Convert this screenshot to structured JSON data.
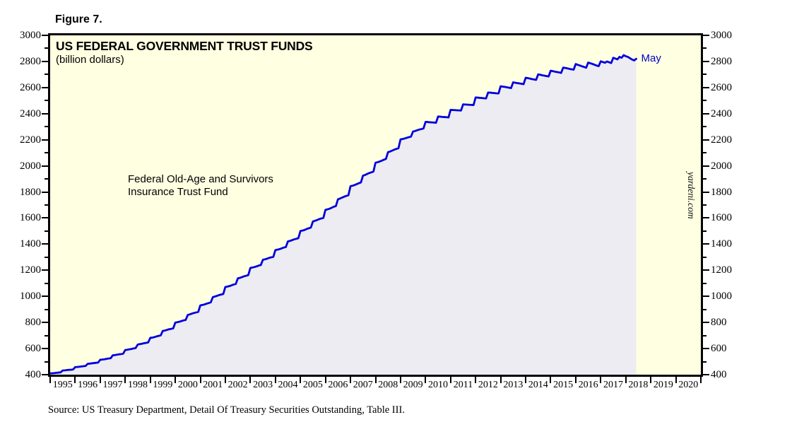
{
  "figure_label": "Figure 7.",
  "chart": {
    "title": "US FEDERAL GOVERNMENT TRUST FUNDS",
    "subtitle": "(billion dollars)",
    "annotation": "Federal Old-Age and Survivors\nInsurance Trust Fund",
    "end_label": "May",
    "watermark": "yardeni.com",
    "colors": {
      "plot_bg": "#FFFFE1",
      "area_fill": "#ECECF2",
      "line": "#0000DD",
      "frame": "#000000",
      "end_label_color": "#0000CC"
    }
  },
  "source_note": "Source: US Treasury Department, Detail Of Treasury Securities Outstanding, Table III.",
  "chart_data": {
    "type": "area",
    "series_name": "Federal Old-Age and Survivors Insurance Trust Fund",
    "unit": "billion dollars",
    "title": "US FEDERAL GOVERNMENT TRUST FUNDS",
    "x_axis_range": [
      1995,
      2021
    ],
    "x_tick_years": [
      1995,
      1996,
      1997,
      1998,
      1999,
      2000,
      2001,
      2002,
      2003,
      2004,
      2005,
      2006,
      2007,
      2008,
      2009,
      2010,
      2011,
      2012,
      2013,
      2014,
      2015,
      2016,
      2017,
      2018,
      2019,
      2020
    ],
    "y_axis_range": [
      400,
      3000
    ],
    "y_tick_step": 200,
    "y_minor_tick_step": 100,
    "x_start_year": 1995,
    "x_interval": "monthly",
    "last_point_label": "May 2018",
    "grid": false,
    "values": [
      410,
      411,
      412,
      414,
      416,
      418,
      432,
      433,
      435,
      437,
      438,
      440,
      458,
      459,
      461,
      463,
      465,
      467,
      483,
      485,
      487,
      489,
      491,
      493,
      514,
      516,
      518,
      521,
      524,
      526,
      548,
      550,
      553,
      556,
      558,
      561,
      589,
      591,
      594,
      597,
      601,
      604,
      631,
      634,
      637,
      641,
      644,
      647,
      682,
      684,
      688,
      693,
      697,
      701,
      735,
      738,
      743,
      748,
      751,
      755,
      799,
      802,
      806,
      811,
      816,
      820,
      858,
      862,
      868,
      873,
      877,
      881,
      931,
      934,
      938,
      944,
      949,
      954,
      994,
      999,
      1004,
      1010,
      1014,
      1018,
      1072,
      1075,
      1079,
      1085,
      1091,
      1095,
      1138,
      1142,
      1148,
      1154,
      1158,
      1163,
      1218,
      1221,
      1225,
      1230,
      1236,
      1240,
      1280,
      1284,
      1289,
      1295,
      1299,
      1303,
      1355,
      1358,
      1362,
      1368,
      1374,
      1378,
      1421,
      1425,
      1431,
      1437,
      1441,
      1446,
      1501,
      1504,
      1509,
      1516,
      1522,
      1527,
      1574,
      1579,
      1585,
      1592,
      1597,
      1601,
      1663,
      1667,
      1672,
      1679,
      1687,
      1692,
      1744,
      1750,
      1757,
      1764,
      1770,
      1775,
      1844,
      1848,
      1853,
      1860,
      1867,
      1873,
      1925,
      1930,
      1938,
      1945,
      1950,
      1956,
      2024,
      2028,
      2033,
      2040,
      2047,
      2053,
      2105,
      2110,
      2117,
      2124,
      2130,
      2135,
      2203,
      2206,
      2210,
      2215,
      2220,
      2224,
      2263,
      2267,
      2273,
      2278,
      2282,
      2286,
      2337,
      2336,
      2334,
      2333,
      2332,
      2330,
      2378,
      2377,
      2375,
      2374,
      2373,
      2371,
      2429,
      2428,
      2427,
      2426,
      2425,
      2424,
      2471,
      2470,
      2469,
      2468,
      2467,
      2466,
      2524,
      2523,
      2521,
      2520,
      2518,
      2517,
      2562,
      2561,
      2559,
      2558,
      2556,
      2555,
      2610,
      2607,
      2605,
      2602,
      2599,
      2596,
      2640,
      2637,
      2634,
      2632,
      2629,
      2626,
      2675,
      2672,
      2669,
      2665,
      2662,
      2659,
      2701,
      2698,
      2694,
      2691,
      2688,
      2685,
      2729,
      2726,
      2722,
      2719,
      2716,
      2712,
      2753,
      2750,
      2747,
      2743,
      2740,
      2737,
      2780,
      2774,
      2769,
      2763,
      2758,
      2752,
      2792,
      2786,
      2781,
      2775,
      2769,
      2764,
      2801,
      2796,
      2790,
      2800,
      2794,
      2788,
      2828,
      2822,
      2816,
      2835,
      2828,
      2848,
      2840,
      2835,
      2825,
      2815,
      2808,
      2820
    ]
  }
}
